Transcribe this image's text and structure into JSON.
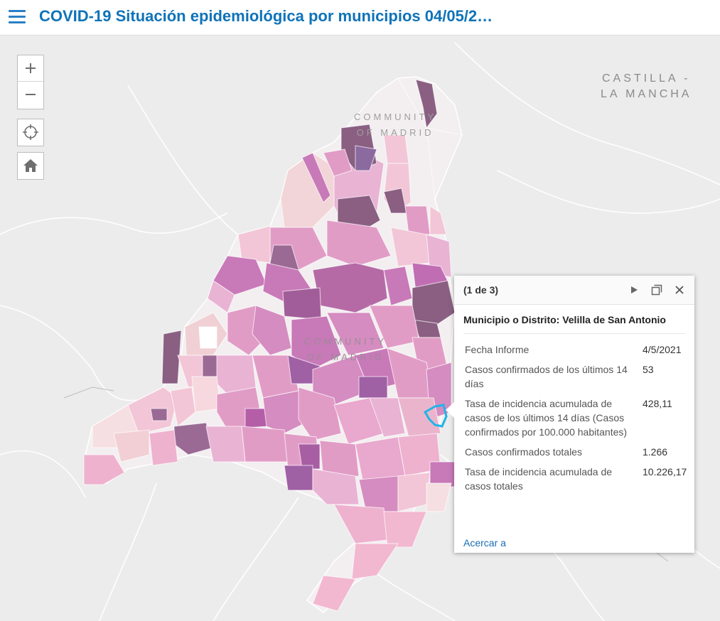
{
  "header": {
    "title": "COVID-19 Situación epidemiológica por municipios 04/05/2…"
  },
  "map": {
    "labels": {
      "castilla": "CASTILLA -\nLA MANCHA",
      "community_north": "COMMUNITY\nOF MADRID",
      "community_center": "COMMUNITY\nOF MADRID"
    },
    "colors": {
      "background": "#ececec",
      "region": "#f3eff0",
      "low": "#f2c6d6",
      "mid": "#e19cc6",
      "high": "#c879b8",
      "very_high": "#8a5f82",
      "selected_outline": "#1fb5e8"
    },
    "zoom_controls": {
      "zoom_in_icon": "plus-icon",
      "zoom_out_icon": "minus-icon",
      "locate_icon": "crosshair-icon",
      "home_icon": "home-icon"
    }
  },
  "popup": {
    "count": "(1 de 3)",
    "title": "Municipio o Distrito: Velilla de San Antonio",
    "attributes": [
      {
        "label": "Fecha Informe",
        "value": "4/5/2021"
      },
      {
        "label": "Casos confirmados de los últimos 14 días",
        "value": "53"
      },
      {
        "label": "Tasa de incidencia acumulada de casos de los últimos 14 días (Casos confirmados por 100.000 habitantes)",
        "value": "428,11"
      },
      {
        "label": "Casos confirmados totales",
        "value": "1.266"
      },
      {
        "label": "Tasa de incidencia acumulada de casos totales",
        "value": "10.226,17"
      }
    ],
    "zoom_link": "Acercar a"
  }
}
